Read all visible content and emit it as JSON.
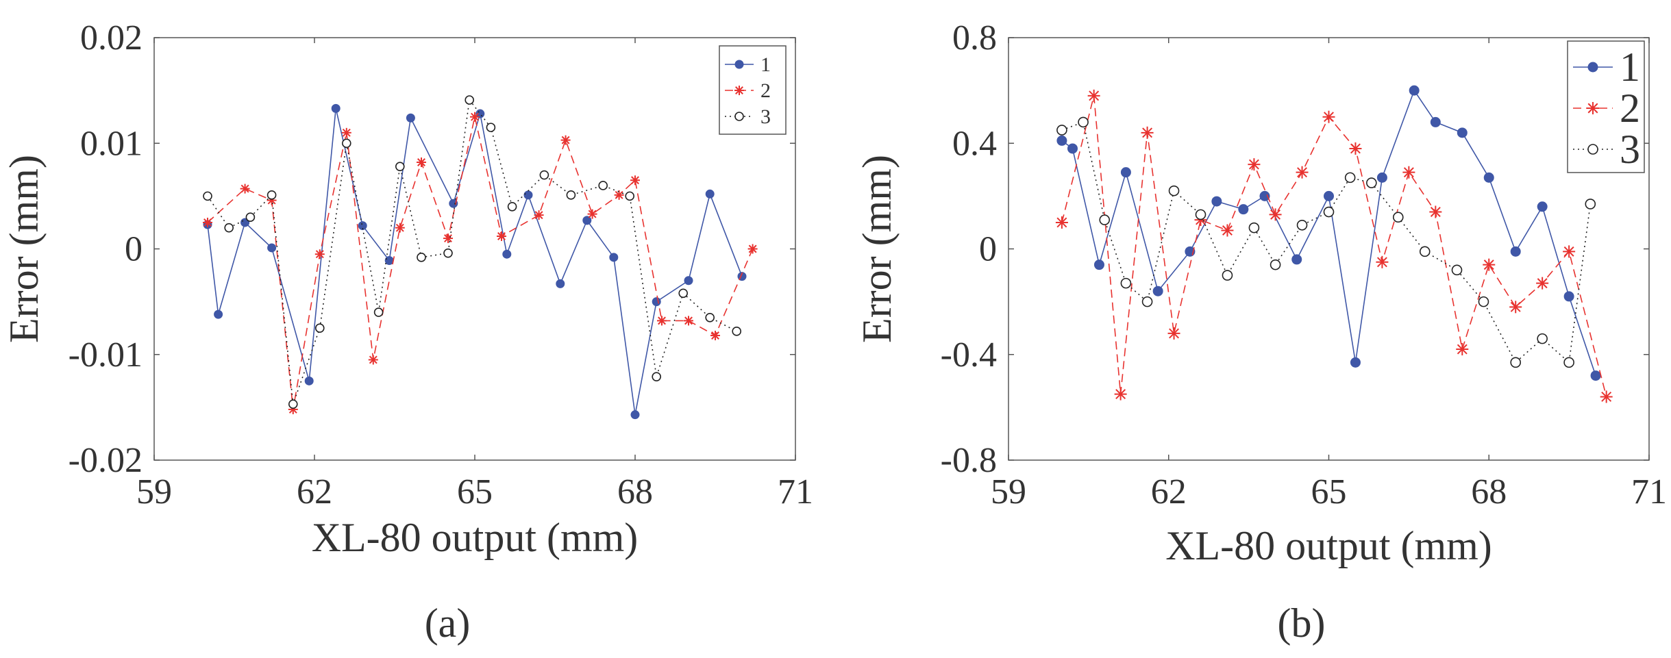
{
  "chart_data": [
    {
      "type": "line",
      "caption": "(a)",
      "xlabel": "XL-80 output (mm)",
      "ylabel": "Error (mm)",
      "xlim": [
        59,
        71
      ],
      "ylim": [
        -0.02,
        0.02
      ],
      "xticks": [
        59,
        62,
        65,
        68,
        71
      ],
      "xtick_labels": [
        "59",
        "62",
        "65",
        "68",
        "71"
      ],
      "yticks": [
        -0.02,
        -0.01,
        0,
        0.01,
        0.02
      ],
      "ytick_labels": [
        "-0.02",
        "-0.01",
        "0",
        "0.01",
        "0.02"
      ],
      "grid": false,
      "legend_position": "top-right",
      "series": [
        {
          "name": "1",
          "marker": "filled-circle",
          "line": "solid",
          "color": "#3F57A7",
          "x": [
            60.0,
            60.2,
            60.7,
            61.2,
            61.9,
            62.4,
            62.9,
            63.4,
            63.8,
            64.6,
            65.1,
            65.6,
            66.0,
            66.6,
            67.1,
            67.6,
            68.0,
            68.4,
            69.0,
            69.4,
            70.0
          ],
          "y": [
            0.0023,
            -0.0062,
            0.0025,
            0.0001,
            -0.0125,
            0.0133,
            0.0022,
            -0.0011,
            0.0124,
            0.0043,
            0.0128,
            -0.0005,
            0.0051,
            -0.0033,
            0.0027,
            -0.0008,
            -0.0157,
            -0.005,
            -0.003,
            0.0052,
            -0.0026
          ]
        },
        {
          "name": "2",
          "marker": "asterisk",
          "line": "dashed",
          "color": "#E8322F",
          "x": [
            60.0,
            60.7,
            61.2,
            61.6,
            62.1,
            62.6,
            63.1,
            63.6,
            64.0,
            64.5,
            65.0,
            65.5,
            66.2,
            66.7,
            67.2,
            67.7,
            68.0,
            68.5,
            69.0,
            69.5,
            70.2
          ],
          "y": [
            0.0025,
            0.0057,
            0.0046,
            -0.0152,
            -0.0005,
            0.011,
            -0.0105,
            0.002,
            0.0082,
            0.001,
            0.0125,
            0.0012,
            0.0032,
            0.0103,
            0.0033,
            0.0051,
            0.0065,
            -0.0068,
            -0.0068,
            -0.0082,
            0.0
          ]
        },
        {
          "name": "3",
          "marker": "open-circle",
          "line": "dotted",
          "color": "#222222",
          "x": [
            60.0,
            60.4,
            60.8,
            61.2,
            61.6,
            62.1,
            62.6,
            63.2,
            63.6,
            64.0,
            64.5,
            64.9,
            65.3,
            65.7,
            66.3,
            66.8,
            67.4,
            67.9,
            68.4,
            68.9,
            69.4,
            69.9
          ],
          "y": [
            0.005,
            0.002,
            0.003,
            0.0051,
            -0.0147,
            -0.0075,
            0.01,
            -0.006,
            0.0078,
            -0.0008,
            -0.0004,
            0.0141,
            0.0115,
            0.004,
            0.007,
            0.0051,
            0.006,
            0.005,
            -0.0121,
            -0.0042,
            -0.0065,
            -0.0078
          ]
        }
      ]
    },
    {
      "type": "line",
      "caption": "(b)",
      "xlabel": "XL-80 output (mm)",
      "ylabel": "Error (mm)",
      "xlim": [
        59,
        71
      ],
      "ylim": [
        -0.8,
        0.8
      ],
      "xticks": [
        59,
        62,
        65,
        68,
        71
      ],
      "xtick_labels": [
        "59",
        "62",
        "65",
        "68",
        "71"
      ],
      "yticks": [
        -0.8,
        -0.4,
        0,
        0.4,
        0.8
      ],
      "ytick_labels": [
        "-0.8",
        "-0.4",
        "0",
        "0.4",
        "0.8"
      ],
      "grid": false,
      "legend_position": "top-right",
      "series": [
        {
          "name": "1",
          "marker": "filled-circle",
          "line": "solid",
          "color": "#3F57A7",
          "x": [
            60.0,
            60.2,
            60.7,
            61.2,
            61.8,
            62.4,
            62.9,
            63.4,
            63.8,
            64.4,
            65.0,
            65.5,
            66.0,
            66.6,
            67.0,
            67.5,
            68.0,
            68.5,
            69.0,
            69.5,
            70.0
          ],
          "y": [
            0.41,
            0.38,
            -0.06,
            0.29,
            -0.16,
            -0.01,
            0.18,
            0.15,
            0.2,
            -0.04,
            0.2,
            -0.43,
            0.27,
            0.6,
            0.48,
            0.44,
            0.27,
            -0.01,
            0.16,
            -0.18,
            -0.48
          ]
        },
        {
          "name": "2",
          "marker": "asterisk",
          "line": "dashed",
          "color": "#E8322F",
          "x": [
            60.0,
            60.6,
            61.1,
            61.6,
            62.1,
            62.6,
            63.1,
            63.6,
            64.0,
            64.5,
            65.0,
            65.5,
            66.0,
            66.5,
            67.0,
            67.5,
            68.0,
            68.5,
            69.0,
            69.5,
            70.2
          ],
          "y": [
            0.1,
            0.58,
            -0.55,
            0.44,
            -0.32,
            0.11,
            0.07,
            0.32,
            0.13,
            0.29,
            0.5,
            0.38,
            -0.05,
            0.29,
            0.14,
            -0.38,
            -0.06,
            -0.22,
            -0.13,
            -0.01,
            -0.56
          ]
        },
        {
          "name": "3",
          "marker": "open-circle",
          "line": "dotted",
          "color": "#222222",
          "x": [
            60.0,
            60.4,
            60.8,
            61.2,
            61.6,
            62.1,
            62.6,
            63.1,
            63.6,
            64.0,
            64.5,
            65.0,
            65.4,
            65.8,
            66.3,
            66.8,
            67.4,
            67.9,
            68.5,
            69.0,
            69.5,
            69.9
          ],
          "y": [
            0.45,
            0.48,
            0.11,
            -0.13,
            -0.2,
            0.22,
            0.13,
            -0.1,
            0.08,
            -0.06,
            0.09,
            0.14,
            0.27,
            0.25,
            0.12,
            -0.01,
            -0.08,
            -0.2,
            -0.43,
            -0.34,
            -0.43,
            0.17
          ]
        }
      ]
    }
  ]
}
